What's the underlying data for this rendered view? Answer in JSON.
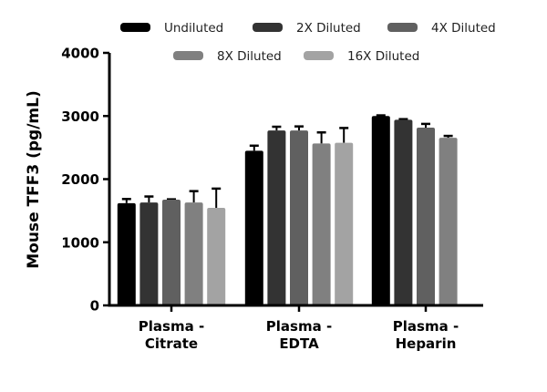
{
  "chart_data": {
    "type": "bar",
    "title": "",
    "xlabel": "",
    "ylabel": "Mouse TFF3 (pg/mL)",
    "ylim": [
      0,
      4000
    ],
    "yticks": [
      "0",
      "1000",
      "2000",
      "3000",
      "4000"
    ],
    "grid": false,
    "legend_placement": "top",
    "categories": [
      [
        "Plasma -",
        "Citrate"
      ],
      [
        "Plasma -",
        "EDTA"
      ],
      [
        "Plasma -",
        "Heparin"
      ]
    ],
    "series": [
      {
        "name": "Undiluted",
        "color": "#000000",
        "values": [
          1620,
          2450,
          3000
        ],
        "error": [
          65,
          80,
          10
        ]
      },
      {
        "name": "2X Diluted",
        "color": "#333333",
        "values": [
          1630,
          2770,
          2940
        ],
        "error": [
          95,
          60,
          10
        ]
      },
      {
        "name": "4X Diluted",
        "color": "#606060",
        "values": [
          1675,
          2770,
          2815
        ],
        "error": [
          5,
          65,
          60
        ]
      },
      {
        "name": "8X Diluted",
        "color": "#808080",
        "values": [
          1630,
          2565,
          2655
        ],
        "error": [
          180,
          175,
          30
        ]
      },
      {
        "name": "16X Diluted",
        "color": "#a3a3a3",
        "values": [
          1545,
          2575,
          null
        ],
        "error": [
          305,
          235,
          null
        ]
      }
    ]
  }
}
